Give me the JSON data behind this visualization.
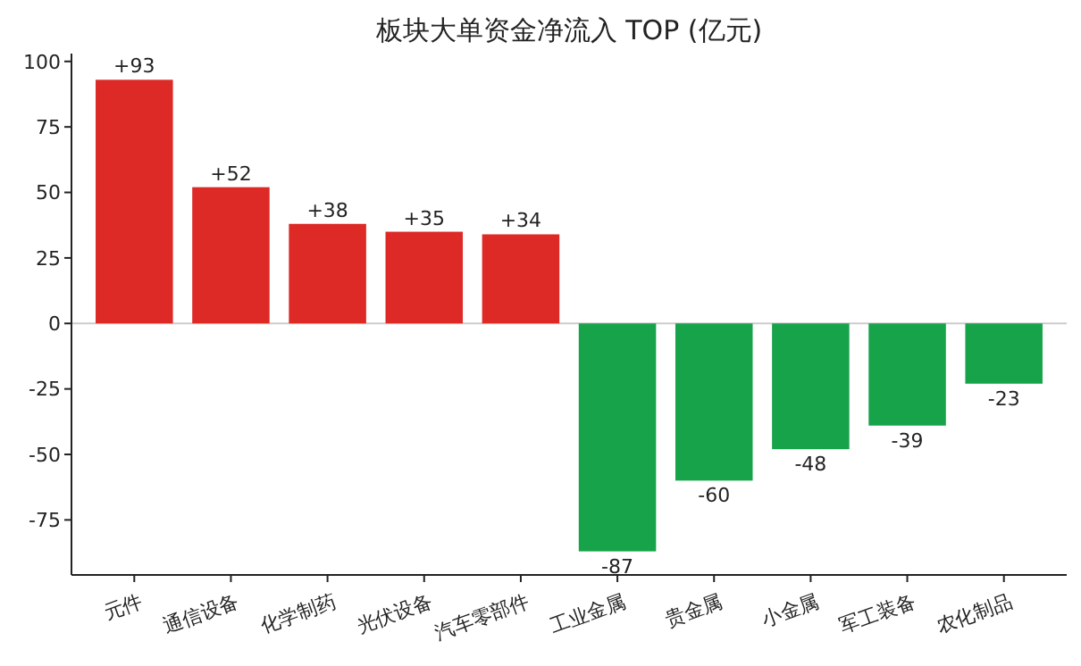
{
  "chart_data": {
    "type": "bar",
    "title": "板块大单资金净流入 TOP (亿元)",
    "categories": [
      "元件",
      "通信设备",
      "化学制药",
      "光伏设备",
      "汽车零部件",
      "工业金属",
      "贵金属",
      "小金属",
      "军工装备",
      "农化制品"
    ],
    "values": [
      93,
      52,
      38,
      35,
      34,
      -87,
      -60,
      -48,
      -39,
      -23
    ],
    "value_labels": [
      "+93",
      "+52",
      "+38",
      "+35",
      "+34",
      "-87",
      "-60",
      "-48",
      "-39",
      "-23"
    ],
    "colors": [
      "#dd2a27",
      "#dd2a27",
      "#dd2a27",
      "#dd2a27",
      "#dd2a27",
      "#17a34a",
      "#17a34a",
      "#17a34a",
      "#17a34a",
      "#17a34a"
    ],
    "ylim": [
      -96,
      103
    ],
    "yticks": [
      -75,
      -50,
      -25,
      0,
      25,
      50,
      75,
      100
    ],
    "ref_lines": [
      {
        "axis": "y",
        "value": 0,
        "color": "#cccccc"
      }
    ],
    "grid": false
  }
}
